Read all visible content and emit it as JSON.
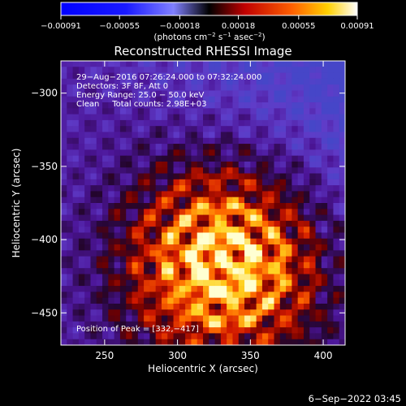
{
  "chart_data": {
    "type": "heatmap",
    "title": "Reconstructed RHESSI Image",
    "xlabel": "Heliocentric X (arcsec)",
    "ylabel": "Heliocentric Y (arcsec)",
    "xlim": [
      220,
      415
    ],
    "ylim": [
      -472,
      -278
    ],
    "x_ticks": [
      250,
      300,
      350,
      400
    ],
    "y_ticks": [
      -300,
      -350,
      -400,
      -450
    ],
    "x_tick_labels": [
      "250",
      "300",
      "350",
      "400"
    ],
    "y_tick_labels": [
      "−300",
      "−350",
      "−400",
      "−450"
    ],
    "colorbar": {
      "range": [
        -0.00091,
        0.00091
      ],
      "ticks": [
        -0.00091,
        -0.00055,
        -0.00018,
        0.00018,
        0.00055,
        0.00091
      ],
      "tick_labels": [
        "−0.00091",
        "−0.00055",
        "−0.00018",
        "0.00018",
        "0.00055",
        "0.00091"
      ],
      "unit_parts": [
        "(photons cm",
        "−2",
        " s",
        "−1",
        " asec",
        "−2",
        ")"
      ]
    },
    "annotations": [
      "29−Aug−2016 07:26:24.000 to 07:32:24.000",
      "Detectors: 3F 8F, Att 0",
      "Energy Range: 25.0 − 50.0 keV",
      "Clean     Total counts: 2.98E+03"
    ],
    "peak_label": "Position of Peak = [332,−417]",
    "peak": [
      332,
      -417
    ],
    "colors": {
      "background": "#000000",
      "axes": "#ffffff"
    }
  },
  "footer": {
    "timestamp": "6−Sep−2022 03:45"
  }
}
